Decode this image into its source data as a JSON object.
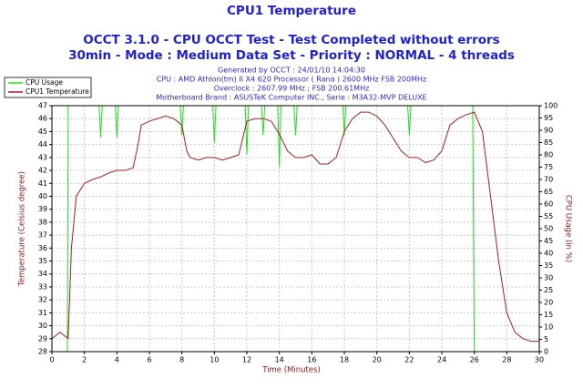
{
  "chart_data": {
    "type": "line",
    "title": "CPU1 Temperature",
    "subtitle": [
      "OCCT 3.1.0 - CPU OCCT Test - Test Completed without errors",
      "30min - Mode : Medium Data Set - Priority : NORMAL - 4 threads"
    ],
    "info": [
      "Generated by OCCT : 24/01/10 14:04:30",
      "CPU : AMD Athlon(tm) II X4 620 Processor ( Rana ) 2600 MHz FSB 200MHz",
      "Overclock : 2607.99 MHz ; FSB 200.61MHz",
      "Motherboard Brand : ASUSTeK Computer INC., Serie : M3A32-MVP DELUXE"
    ],
    "xlabel": "Time (Minutes)",
    "ylabel": "Temperature (Celsius degree)",
    "y2label": "CPU Usage (in %)",
    "xlim": [
      0,
      30
    ],
    "xticks": [
      0,
      2,
      4,
      6,
      8,
      10,
      12,
      14,
      16,
      18,
      20,
      22,
      24,
      26,
      28,
      30
    ],
    "ylim": [
      28,
      47
    ],
    "yticks": [
      28,
      29,
      30,
      31,
      32,
      33,
      34,
      35,
      36,
      37,
      38,
      39,
      40,
      41,
      42,
      43,
      44,
      45,
      46,
      47
    ],
    "y2lim": [
      0,
      100
    ],
    "y2ticks": [
      0,
      5,
      10,
      15,
      20,
      25,
      30,
      35,
      40,
      45,
      50,
      55,
      60,
      65,
      70,
      75,
      80,
      85,
      90,
      95,
      100
    ],
    "grid": true,
    "legend": "top-left",
    "series": [
      {
        "name": "CPU Usage",
        "color": "#22dd22",
        "axis": "y2",
        "x": [
          0,
          0.95,
          1.0,
          2.9,
          3,
          3.1,
          3.9,
          4,
          4.1,
          7.9,
          8,
          8.1,
          9.9,
          10,
          10.1,
          11.9,
          12,
          12.1,
          12.9,
          13,
          13.1,
          13.9,
          14,
          14.1,
          14.9,
          15,
          15.1,
          17.9,
          18,
          18.1,
          21.9,
          22,
          22.1,
          25.9,
          26,
          30
        ],
        "values": [
          0,
          0,
          100,
          100,
          87,
          100,
          100,
          87,
          100,
          100,
          88,
          100,
          100,
          85,
          100,
          100,
          80,
          100,
          100,
          88,
          100,
          100,
          75,
          100,
          100,
          88,
          100,
          100,
          88,
          100,
          100,
          88,
          100,
          100,
          0,
          0
        ]
      },
      {
        "name": "CPU1 Temperature",
        "color": "#a52020",
        "x": [
          0,
          0.5,
          1,
          1.2,
          1.5,
          2,
          2.5,
          3,
          3.5,
          4,
          4.5,
          5,
          5.3,
          5.5,
          6,
          6.5,
          7,
          7.5,
          8,
          8.3,
          8.5,
          9,
          9.5,
          10,
          10.5,
          11,
          11.5,
          12,
          12.5,
          13,
          13.5,
          14,
          14.5,
          15,
          15.5,
          16,
          16.5,
          17,
          17.5,
          18,
          18.5,
          19,
          19.5,
          20,
          20.5,
          21,
          21.5,
          22,
          22.5,
          23,
          23.5,
          24,
          24.5,
          25,
          25.5,
          26,
          26.5,
          27,
          27.5,
          28,
          28.5,
          29,
          29.5,
          30
        ],
        "values": [
          29,
          29.5,
          29,
          36,
          40,
          41,
          41.3,
          41.5,
          41.8,
          42,
          42,
          42.2,
          44,
          45.5,
          45.8,
          46,
          46.2,
          46,
          45.5,
          43.5,
          43,
          42.8,
          43,
          43,
          42.8,
          43,
          43.2,
          45.8,
          46,
          46,
          45.8,
          44.8,
          43.5,
          43,
          43,
          43.2,
          42.5,
          42.5,
          43,
          45,
          46,
          46.5,
          46.5,
          46.2,
          45.5,
          44.5,
          43.5,
          43,
          43,
          42.6,
          42.8,
          43.5,
          45.5,
          46,
          46.3,
          46.5,
          45,
          40,
          35,
          31,
          29.5,
          29,
          28.8,
          28.8
        ]
      }
    ]
  }
}
